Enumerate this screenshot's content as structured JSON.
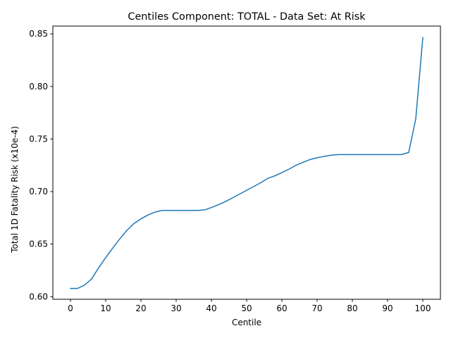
{
  "chart_data": {
    "type": "line",
    "title": "Centiles Component: TOTAL - Data Set: At Risk",
    "xlabel": "Centile",
    "ylabel": "Total 1D Fatality Risk (x10e-4)",
    "xlim": [
      -5,
      105
    ],
    "ylim": [
      0.5975,
      0.8575
    ],
    "xticks": [
      0,
      10,
      20,
      30,
      40,
      50,
      60,
      70,
      80,
      90,
      100
    ],
    "xtick_labels": [
      "0",
      "10",
      "20",
      "30",
      "40",
      "50",
      "60",
      "70",
      "80",
      "90",
      "100"
    ],
    "yticks": [
      0.6,
      0.65,
      0.7,
      0.75,
      0.8,
      0.85
    ],
    "ytick_labels": [
      "0.60",
      "0.65",
      "0.70",
      "0.75",
      "0.80",
      "0.85"
    ],
    "grid": false,
    "legend": "none",
    "series": [
      {
        "color": "#1f77b4",
        "x": [
          0,
          2,
          4,
          6,
          8,
          10,
          12,
          14,
          16,
          18,
          20,
          22,
          24,
          26,
          28,
          30,
          32,
          34,
          36,
          38,
          40,
          42,
          44,
          46,
          48,
          50,
          52,
          54,
          56,
          58,
          60,
          62,
          64,
          66,
          68,
          70,
          72,
          74,
          76,
          78,
          80,
          82,
          84,
          86,
          88,
          90,
          92,
          94,
          96,
          98,
          100
        ],
        "y": [
          0.6078,
          0.6078,
          0.611,
          0.6168,
          0.6275,
          0.6372,
          0.6462,
          0.655,
          0.663,
          0.6695,
          0.674,
          0.6777,
          0.6805,
          0.682,
          0.682,
          0.682,
          0.682,
          0.682,
          0.682,
          0.6825,
          0.6848,
          0.6875,
          0.6905,
          0.694,
          0.6976,
          0.7012,
          0.7048,
          0.7084,
          0.7125,
          0.715,
          0.718,
          0.7213,
          0.725,
          0.7278,
          0.7305,
          0.7322,
          0.7335,
          0.7346,
          0.7352,
          0.7352,
          0.7352,
          0.7352,
          0.7352,
          0.7352,
          0.7352,
          0.7352,
          0.7352,
          0.7352,
          0.7372,
          0.7692,
          0.8465
        ]
      }
    ]
  }
}
